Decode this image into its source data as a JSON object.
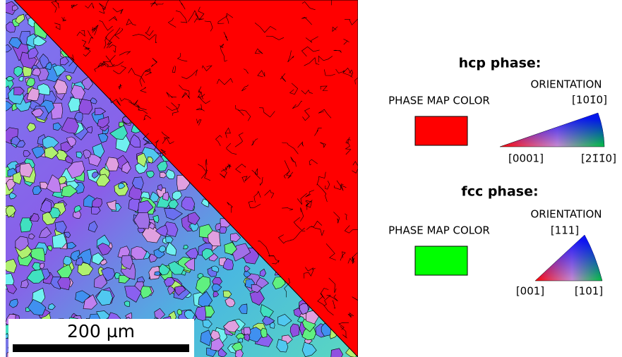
{
  "map": {
    "scale_bar": "200 µm"
  },
  "hcp": {
    "title": "hcp phase:",
    "phase_label": "PHASE MAP COLOR",
    "orientation_label": "ORIENTATION",
    "poles": [
      "[0001]",
      "[21̄1̄0]",
      "[101̄0]"
    ]
  },
  "fcc": {
    "title": "fcc phase:",
    "phase_label": "PHASE MAP COLOR",
    "orientation_label": "ORIENTATION",
    "poles": [
      "[001]",
      "[101]",
      "[111]"
    ]
  }
}
